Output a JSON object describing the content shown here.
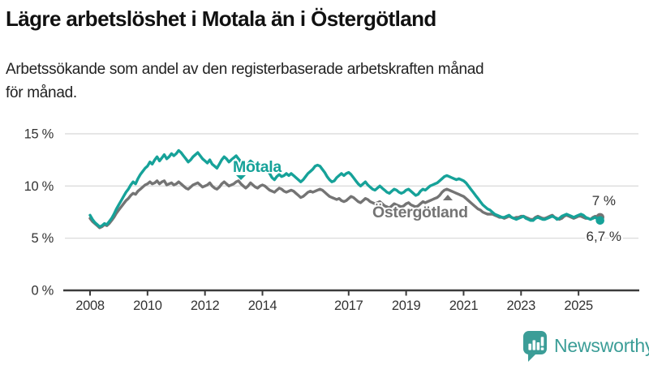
{
  "header": {
    "title": "Lägre arbetslöshet i Motala än i Östergötland",
    "subtitle": "Arbetssökande som andel av den registerbaserade arbetskraften månad\nför månad."
  },
  "footer": {
    "brand": "Newsworthy"
  },
  "colors": {
    "motala": "#16A299",
    "ostergotland": "#747474",
    "axis": "#3B3B3B",
    "grid": "#DBDBDB",
    "tick_text": "#333333",
    "brand": "#3B9D97"
  },
  "chart_data": {
    "type": "line",
    "unit": "% av registerbaserad arbetskraft",
    "frequency": "monthly",
    "grid": "horizontal",
    "x_axis": {
      "start_year": 2008,
      "ticks": [
        2008,
        2010,
        2012,
        2014,
        2017,
        2019,
        2021,
        2023,
        2025
      ]
    },
    "y_axis": {
      "range": [
        0,
        15.5
      ],
      "ticks": [
        {
          "value": 0,
          "label": "0 %"
        },
        {
          "value": 5,
          "label": "5 %"
        },
        {
          "value": 10,
          "label": "10 %"
        },
        {
          "value": 15,
          "label": "15 %"
        }
      ]
    },
    "series": [
      {
        "name": "Östergötland",
        "color": "#747474",
        "start_year": 2008,
        "end_label": "7 %",
        "latest_value": 7.0,
        "values": [
          6.9,
          6.6,
          6.4,
          6.2,
          6.0,
          6.1,
          6.3,
          6.2,
          6.4,
          6.7,
          7.0,
          7.4,
          7.7,
          8.0,
          8.3,
          8.6,
          8.8,
          9.1,
          9.3,
          9.2,
          9.5,
          9.7,
          9.9,
          10.1,
          10.2,
          10.4,
          10.2,
          10.3,
          10.5,
          10.2,
          10.4,
          10.5,
          10.1,
          10.2,
          10.3,
          10.1,
          10.2,
          10.4,
          10.2,
          10.0,
          9.8,
          9.7,
          9.9,
          10.1,
          10.2,
          10.3,
          10.1,
          9.9,
          10.0,
          10.1,
          10.3,
          10.0,
          9.8,
          9.7,
          9.9,
          10.2,
          10.4,
          10.2,
          10.0,
          10.1,
          10.2,
          10.4,
          10.5,
          10.2,
          10.0,
          9.8,
          10.0,
          10.3,
          10.1,
          9.9,
          9.8,
          10.0,
          10.1,
          10.0,
          9.8,
          9.6,
          9.5,
          9.4,
          9.6,
          9.8,
          9.7,
          9.5,
          9.4,
          9.5,
          9.6,
          9.5,
          9.3,
          9.1,
          8.9,
          9.0,
          9.2,
          9.4,
          9.5,
          9.4,
          9.5,
          9.6,
          9.7,
          9.6,
          9.4,
          9.2,
          9.0,
          8.9,
          8.8,
          8.7,
          8.8,
          8.6,
          8.5,
          8.6,
          8.8,
          9.0,
          8.9,
          8.7,
          8.5,
          8.4,
          8.6,
          8.8,
          8.7,
          8.5,
          8.4,
          8.3,
          8.4,
          8.5,
          8.3,
          8.1,
          8.0,
          7.9,
          8.1,
          8.3,
          8.2,
          8.1,
          8.0,
          8.1,
          8.3,
          8.4,
          8.2,
          8.1,
          8.0,
          8.1,
          8.3,
          8.5,
          8.4,
          8.5,
          8.6,
          8.7,
          8.8,
          8.9,
          9.1,
          9.4,
          9.6,
          9.7,
          9.6,
          9.5,
          9.4,
          9.3,
          9.2,
          9.1,
          9.0,
          8.8,
          8.6,
          8.4,
          8.2,
          8.0,
          7.8,
          7.7,
          7.5,
          7.4,
          7.3,
          7.3,
          7.3,
          7.2,
          7.1,
          7.0,
          7.0,
          6.9,
          7.0,
          7.1,
          7.0,
          6.9,
          7.0,
          7.0,
          7.1,
          7.1,
          7.0,
          6.9,
          6.8,
          6.8,
          7.0,
          7.1,
          7.0,
          6.9,
          6.9,
          7.0,
          7.1,
          7.2,
          7.0,
          6.9,
          6.8,
          6.9,
          7.1,
          7.2,
          7.1,
          7.0,
          6.9,
          7.0,
          7.1,
          7.1,
          7.0,
          6.9,
          6.9,
          6.8,
          7.0,
          7.1,
          7.0,
          7.0
        ]
      },
      {
        "name": "Motala",
        "color": "#16A299",
        "start_year": 2008,
        "end_label": "6,7 %",
        "latest_value": 6.7,
        "values": [
          7.2,
          6.8,
          6.5,
          6.3,
          6.1,
          6.2,
          6.4,
          6.3,
          6.6,
          6.9,
          7.3,
          7.8,
          8.2,
          8.6,
          9.0,
          9.4,
          9.7,
          10.1,
          10.4,
          10.2,
          10.7,
          11.1,
          11.4,
          11.7,
          11.9,
          12.3,
          12.1,
          12.5,
          12.8,
          12.4,
          12.7,
          13.0,
          12.6,
          12.8,
          13.1,
          12.9,
          13.1,
          13.4,
          13.2,
          12.9,
          12.6,
          12.3,
          12.5,
          12.8,
          13.0,
          13.2,
          12.9,
          12.6,
          12.4,
          12.2,
          12.5,
          12.1,
          11.9,
          11.7,
          12.1,
          12.5,
          12.8,
          12.6,
          12.3,
          12.5,
          12.7,
          12.9,
          12.6,
          12.3,
          12.0,
          11.8,
          12.1,
          12.4,
          12.2,
          12.0,
          11.8,
          12.0,
          11.8,
          11.7,
          11.5,
          11.2,
          10.8,
          10.6,
          10.9,
          11.1,
          10.9,
          11.0,
          11.2,
          11.0,
          11.2,
          11.0,
          10.8,
          10.6,
          10.4,
          10.6,
          10.9,
          11.2,
          11.4,
          11.6,
          11.9,
          12.0,
          11.9,
          11.6,
          11.3,
          10.9,
          10.6,
          10.4,
          10.5,
          10.8,
          11.0,
          11.2,
          11.0,
          11.2,
          11.3,
          11.1,
          10.8,
          10.5,
          10.2,
          10.0,
          10.2,
          10.4,
          10.1,
          9.9,
          9.7,
          9.6,
          9.8,
          10.0,
          9.8,
          9.6,
          9.4,
          9.3,
          9.5,
          9.7,
          9.6,
          9.4,
          9.3,
          9.4,
          9.6,
          9.7,
          9.5,
          9.3,
          9.1,
          9.2,
          9.5,
          9.7,
          9.6,
          9.8,
          10.0,
          10.1,
          10.2,
          10.3,
          10.5,
          10.7,
          10.9,
          11.0,
          10.9,
          10.8,
          10.7,
          10.6,
          10.7,
          10.6,
          10.5,
          10.3,
          10.0,
          9.7,
          9.4,
          9.1,
          8.8,
          8.5,
          8.2,
          8.0,
          7.8,
          7.7,
          7.5,
          7.3,
          7.2,
          7.1,
          7.0,
          7.0,
          7.1,
          7.2,
          7.0,
          6.9,
          6.8,
          6.9,
          7.0,
          7.1,
          6.9,
          6.8,
          6.7,
          6.7,
          6.9,
          7.0,
          6.9,
          6.8,
          6.8,
          6.9,
          7.0,
          7.1,
          7.0,
          6.8,
          6.9,
          7.1,
          7.2,
          7.3,
          7.2,
          7.1,
          7.0,
          7.1,
          7.2,
          7.3,
          7.2,
          7.0,
          6.9,
          6.8,
          6.9,
          7.0,
          6.8,
          6.7
        ]
      }
    ]
  }
}
